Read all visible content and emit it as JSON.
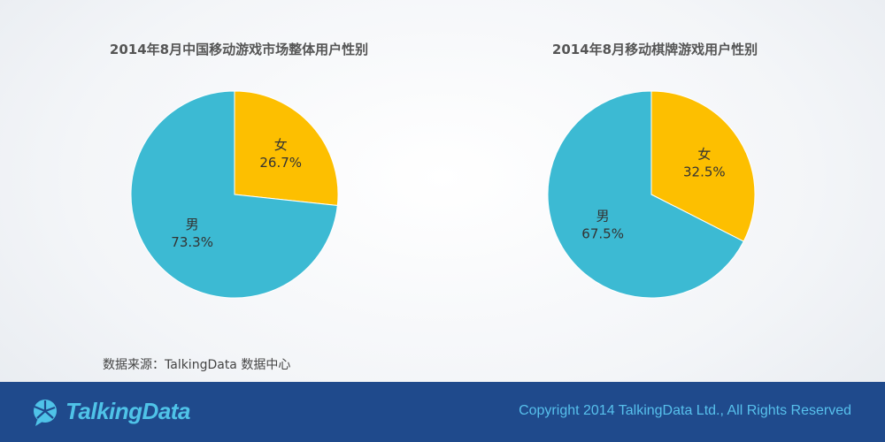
{
  "chart_data": [
    {
      "type": "pie",
      "title": "2014年8月中国移动游戏市场整体用户性别",
      "slices": [
        {
          "name": "女",
          "value": 26.7,
          "label": "26.7%",
          "color": "#fdbf00"
        },
        {
          "name": "男",
          "value": 73.3,
          "label": "73.3%",
          "color": "#3cbad3"
        }
      ]
    },
    {
      "type": "pie",
      "title": "2014年8月移动棋牌游戏用户性别",
      "slices": [
        {
          "name": "女",
          "value": 32.5,
          "label": "32.5%",
          "color": "#fdbf00"
        },
        {
          "name": "男",
          "value": 67.5,
          "label": "67.5%",
          "color": "#3cbad3"
        }
      ]
    }
  ],
  "source": "数据来源：TalkingData 数据中心",
  "footer": {
    "logo_text": "TalkingData",
    "logo_icon": "talkingdata-logo-icon",
    "copyright": "Copyright 2014 TalkingData Ltd., All Rights Reserved",
    "bg_color": "#1f4a8c"
  }
}
